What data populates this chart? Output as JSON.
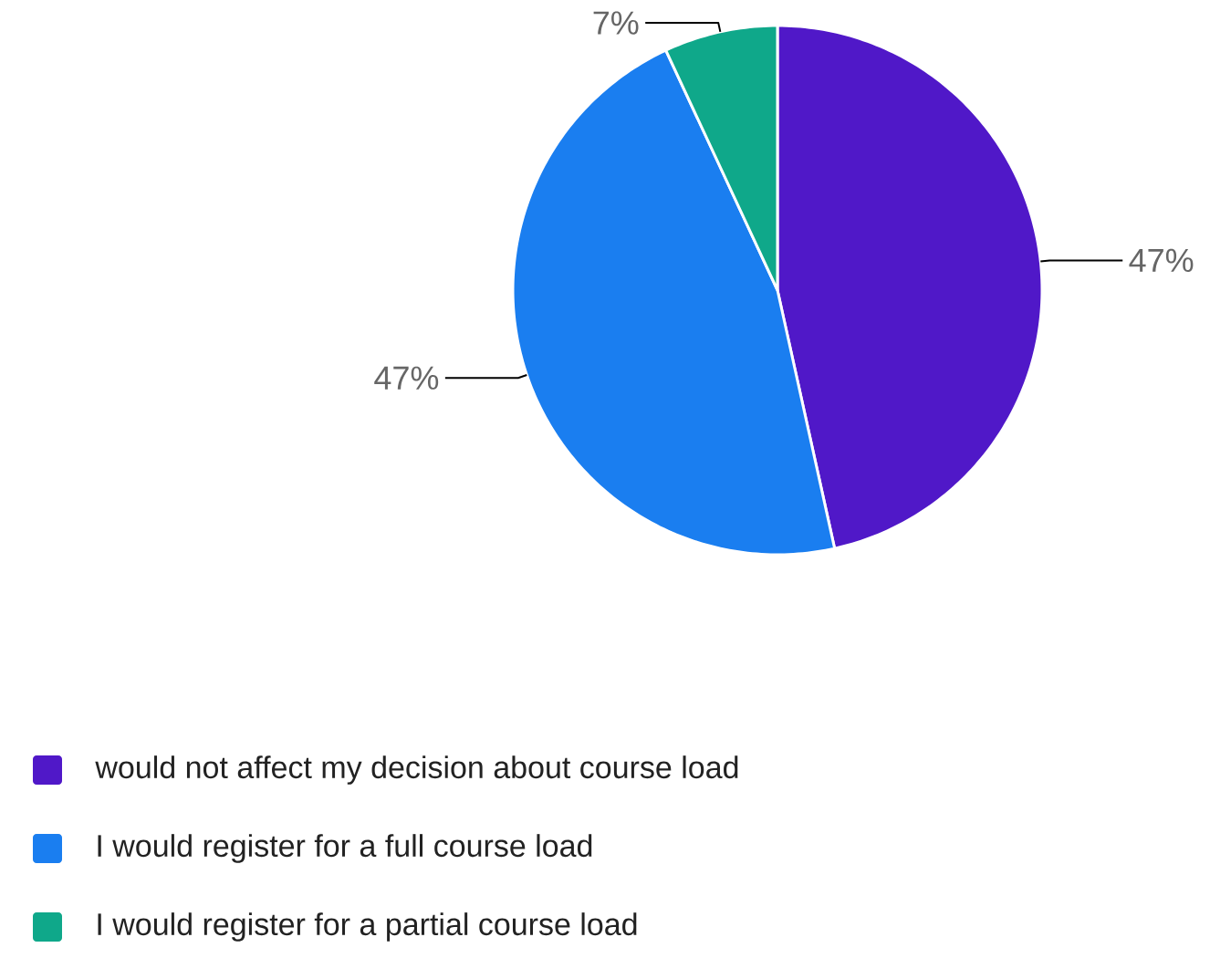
{
  "chart_data": {
    "type": "pie",
    "categories": [
      "would not affect my decision about course load",
      "I would register for a full course load",
      "I would register for a partial course load"
    ],
    "values": [
      47,
      47,
      7
    ],
    "colors": [
      "#5018c8",
      "#1a7ef0",
      "#0fa88a"
    ],
    "value_labels": [
      "47%",
      "47%",
      "7%"
    ],
    "legend": "bottom"
  }
}
